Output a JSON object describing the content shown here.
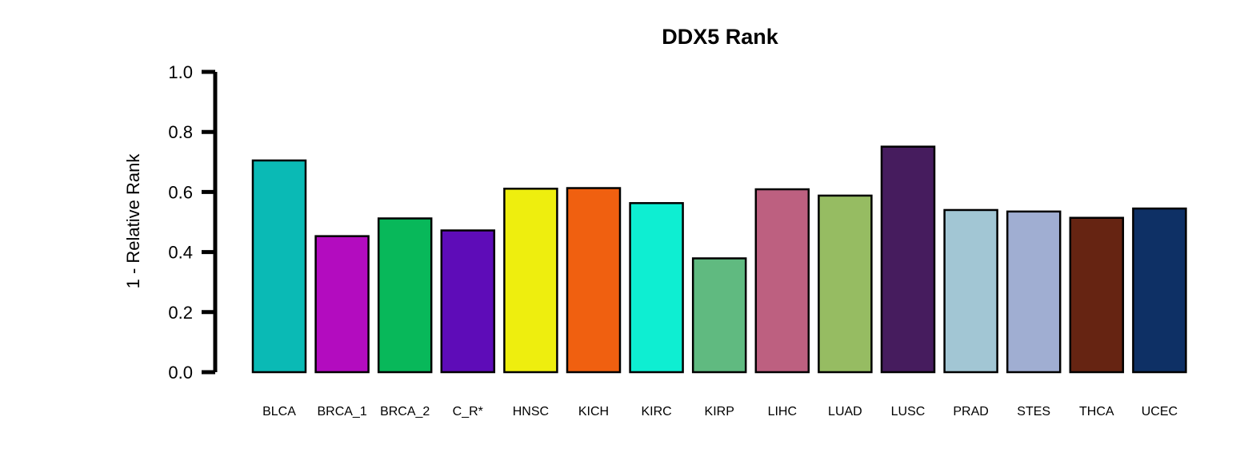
{
  "chart_data": {
    "type": "bar",
    "title": "DDX5 Rank",
    "ylabel": "1 - Relative Rank",
    "xlabel": "",
    "ylim": [
      0,
      1.0
    ],
    "yticks": [
      "0.0",
      "0.2",
      "0.4",
      "0.6",
      "0.8",
      "1.0"
    ],
    "categories": [
      "BLCA",
      "BRCA_1",
      "BRCA_2",
      "C_R*",
      "HNSC",
      "KICH",
      "KIRC",
      "KIRP",
      "LIHC",
      "LUAD",
      "LUSC",
      "PRAD",
      "STES",
      "THCA",
      "UCEC"
    ],
    "values": [
      0.705,
      0.453,
      0.512,
      0.472,
      0.611,
      0.613,
      0.563,
      0.379,
      0.609,
      0.588,
      0.751,
      0.54,
      0.535,
      0.514,
      0.545
    ],
    "colors": [
      "#0ABAB5",
      "#B30CBF",
      "#08B85A",
      "#5E0CB8",
      "#EEEE0E",
      "#F06010",
      "#0EEED2",
      "#60BA80",
      "#BD6080",
      "#96BC62",
      "#461C5E",
      "#A2C6D4",
      "#A0AED2",
      "#662412",
      "#0E3065"
    ],
    "grid": false,
    "legend": "none"
  }
}
